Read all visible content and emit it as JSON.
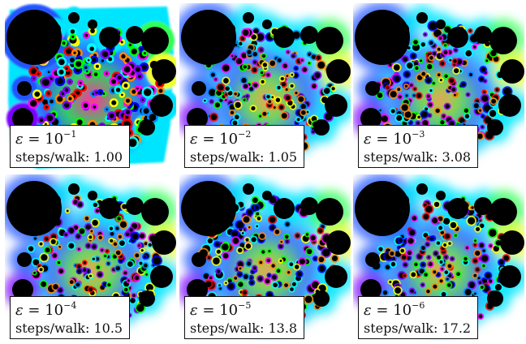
{
  "panels": [
    {
      "eps_symbol": "ε",
      "eps_base": "= 10",
      "eps_exp": "−1",
      "steps_label": "steps/walk:",
      "steps_value": "1.00"
    },
    {
      "eps_symbol": "ε",
      "eps_base": "= 10",
      "eps_exp": "−2",
      "steps_label": "steps/walk:",
      "steps_value": "1.05"
    },
    {
      "eps_symbol": "ε",
      "eps_base": "= 10",
      "eps_exp": "−3",
      "steps_label": "steps/walk:",
      "steps_value": "3.08"
    },
    {
      "eps_symbol": "ε",
      "eps_base": "= 10",
      "eps_exp": "−4",
      "steps_label": "steps/walk:",
      "steps_value": "10.5"
    },
    {
      "eps_symbol": "ε",
      "eps_base": "= 10",
      "eps_exp": "−5",
      "steps_label": "steps/walk:",
      "steps_value": "13.8"
    },
    {
      "eps_symbol": "ε",
      "eps_base": "= 10",
      "eps_exp": "−6",
      "steps_label": "steps/walk:",
      "steps_value": "17.2"
    }
  ],
  "colors": {
    "background": "#ffffff",
    "disk": "#000000",
    "field_palette": [
      "#ff0000",
      "#ff8800",
      "#ffff00",
      "#00ff00",
      "#00ffff",
      "#0088ff",
      "#0000ff",
      "#8800ff",
      "#ff00ff"
    ],
    "halo_cyan": "#00e5ff",
    "halo_green": "#33ff55",
    "halo_yellow": "#eeff33",
    "halo_blue": "#2255ff",
    "halo_violet": "#7a00ff"
  }
}
